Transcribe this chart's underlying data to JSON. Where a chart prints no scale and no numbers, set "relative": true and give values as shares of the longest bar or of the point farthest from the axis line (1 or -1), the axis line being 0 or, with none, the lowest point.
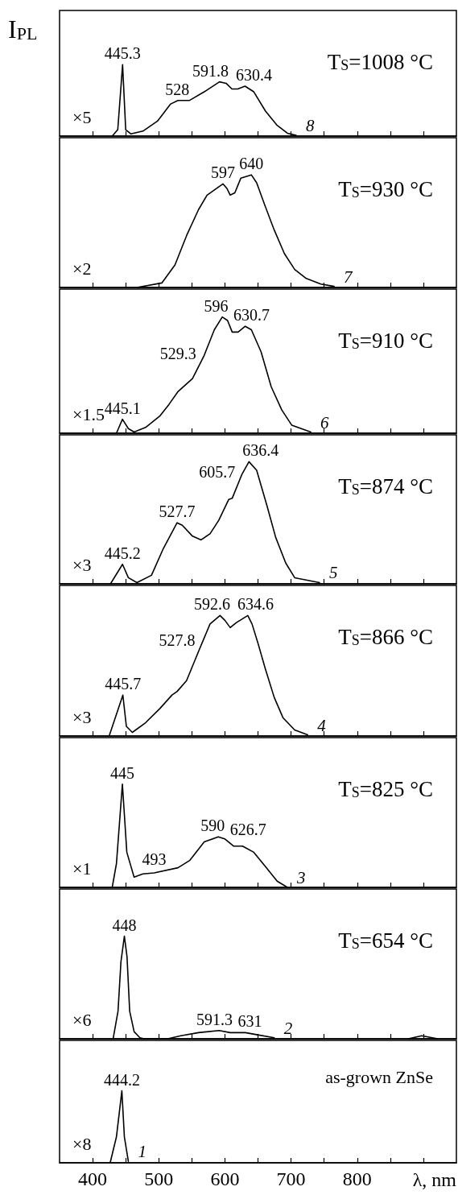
{
  "chart_data": [
    {
      "type": "line",
      "title": "T$_{S}$=1008 °C",
      "ylabel": "I$_{PL}$",
      "relative": true,
      "xlim": [
        350,
        950
      ],
      "tick_labels": false,
      "xticks": [
        400,
        {
          "value": 450,
          "label": null
        },
        500,
        {
          "value": 550,
          "label": null
        },
        600,
        {
          "value": 650,
          "label": null
        },
        700,
        {
          "value": 750,
          "label": null
        },
        800,
        {
          "value": 850,
          "label": null
        },
        {
          "value": 900,
          "label": null
        }
      ],
      "series": [
        {
          "name": "8",
          "color": "#000000",
          "x": [
            429.6,
            438,
            445.3,
            450,
            458,
            476,
            498,
            518,
            529,
            546.6,
            568.7,
            591.8,
            601.8,
            610.6,
            619.4,
            630.4,
            643.7,
            661.4,
            679,
            694.5,
            707.7
          ],
          "values": [
            0,
            0.09,
            1,
            0.09,
            0.03,
            0.07,
            0.21,
            0.45,
            0.5,
            0.5,
            0.62,
            0.76,
            0.74,
            0.66,
            0.66,
            0.7,
            0.62,
            0.35,
            0.15,
            0.04,
            0.01
          ]
        }
      ],
      "annotations": [
        "×5",
        {
          "text": "445.3",
          "x": 445.3,
          "y": 1
        },
        {
          "text": "528",
          "x": 528,
          "y": 0.5
        },
        {
          "text": "591.8",
          "x": 591.8,
          "y": 0.76
        },
        {
          "text": "630.4",
          "x": 630.4,
          "y": 0.7
        }
      ]
    },
    {
      "type": "line",
      "title": "T$_{S}$=930 °C",
      "relative": true,
      "xlim": [
        350,
        950
      ],
      "tick_labels": false,
      "xticks": [
        400,
        {
          "value": 450,
          "label": null
        },
        500,
        {
          "value": 550,
          "label": null
        },
        600,
        {
          "value": 650,
          "label": null
        },
        700,
        {
          "value": 750,
          "label": null
        },
        800,
        {
          "value": 850,
          "label": null
        },
        {
          "value": 900,
          "label": null
        }
      ],
      "series": [
        {
          "name": "7",
          "color": "#000000",
          "x": [
            467,
            504.6,
            524.5,
            542,
            560,
            573,
            597,
            603,
            608,
            615,
            624,
            640,
            648,
            661,
            674.6,
            690,
            705.5,
            723,
            745,
            765
          ],
          "values": [
            0,
            0.04,
            0.2,
            0.46,
            0.69,
            0.82,
            0.92,
            0.88,
            0.82,
            0.84,
            0.97,
            1,
            0.93,
            0.72,
            0.51,
            0.3,
            0.16,
            0.08,
            0.03,
            0.01
          ]
        }
      ],
      "annotations": [
        "×2",
        {
          "text": "597",
          "x": 597,
          "y": 0.92
        },
        {
          "text": "640",
          "x": 640,
          "y": 1
        }
      ]
    },
    {
      "type": "line",
      "title": "T$_{S}$=910 °C",
      "relative": true,
      "xlim": [
        350,
        950
      ],
      "tick_labels": false,
      "xticks": [
        400,
        {
          "value": 450,
          "label": null
        },
        500,
        {
          "value": 550,
          "label": null
        },
        600,
        {
          "value": 650,
          "label": null
        },
        700,
        {
          "value": 750,
          "label": null
        },
        800,
        {
          "value": 850,
          "label": null
        },
        {
          "value": 900,
          "label": null
        }
      ],
      "series": [
        {
          "name": "6",
          "color": "#000000",
          "x": [
            436,
            445.1,
            454,
            462.7,
            480,
            502,
            515.7,
            529.3,
            551,
            568.7,
            584,
            596,
            604,
            611,
            620,
            630.7,
            640,
            654.7,
            670,
            686,
            701,
            729.8
          ],
          "values": [
            0,
            0.12,
            0.04,
            0.01,
            0.05,
            0.15,
            0.25,
            0.36,
            0.47,
            0.67,
            0.89,
            1,
            0.97,
            0.87,
            0.87,
            0.92,
            0.89,
            0.7,
            0.4,
            0.2,
            0.07,
            0.01
          ]
        }
      ],
      "annotations": [
        "×1.5",
        {
          "text": "445.1",
          "x": 445.1,
          "y": 0.12
        },
        {
          "text": "529.3",
          "x": 529.3,
          "y": 0.36
        },
        {
          "text": "596",
          "x": 596,
          "y": 1
        },
        {
          "text": "630.7",
          "x": 630.7,
          "y": 0.92
        }
      ]
    },
    {
      "type": "line",
      "title": "T$_{S}$=874 °C",
      "relative": true,
      "xlim": [
        350,
        950
      ],
      "tick_labels": false,
      "xticks": [
        400,
        {
          "value": 450,
          "label": null
        },
        500,
        {
          "value": 550,
          "label": null
        },
        600,
        {
          "value": 650,
          "label": null
        },
        700,
        {
          "value": 750,
          "label": null
        },
        800,
        {
          "value": 850,
          "label": null
        },
        {
          "value": 900,
          "label": null
        }
      ],
      "series": [
        {
          "name": "5",
          "color": "#000000",
          "x": [
            427,
            445.2,
            454,
            467,
            489,
            507,
            527.7,
            535.5,
            551,
            564,
            577.5,
            590.7,
            605.7,
            611,
            626,
            636.4,
            648,
            663.6,
            676.8,
            692,
            705.5,
            743
          ],
          "values": [
            0,
            0.16,
            0.05,
            0.01,
            0.07,
            0.29,
            0.5,
            0.48,
            0.39,
            0.36,
            0.41,
            0.52,
            0.69,
            0.7,
            0.9,
            1,
            0.93,
            0.64,
            0.38,
            0.17,
            0.05,
            0.01
          ]
        }
      ],
      "annotations": [
        "×3",
        {
          "text": "445.2",
          "x": 445.2,
          "y": 0.16
        },
        {
          "text": "527.7",
          "x": 527.7,
          "y": 0.5
        },
        {
          "text": "605.7",
          "x": 605.7,
          "y": 0.69
        },
        {
          "text": "636.4",
          "x": 636.4,
          "y": 1
        }
      ]
    },
    {
      "type": "line",
      "title": "T$_{S}$=866 °C",
      "relative": true,
      "xlim": [
        350,
        950
      ],
      "tick_labels": false,
      "xticks": [
        400,
        {
          "value": 450,
          "label": null
        },
        500,
        {
          "value": 550,
          "label": null
        },
        600,
        {
          "value": 650,
          "label": null
        },
        700,
        {
          "value": 750,
          "label": null
        },
        800,
        {
          "value": 850,
          "label": null
        },
        {
          "value": 900,
          "label": null
        }
      ],
      "series": [
        {
          "name": "4",
          "color": "#000000",
          "x": [
            425,
            445.7,
            451,
            460,
            480,
            502,
            520,
            527.8,
            542,
            560,
            577.5,
            592.6,
            600,
            608,
            617,
            634.6,
            641,
            650,
            661,
            674.6,
            688,
            705.5,
            725
          ],
          "values": [
            0,
            0.34,
            0.08,
            0.03,
            0.11,
            0.23,
            0.34,
            0.37,
            0.46,
            0.7,
            0.93,
            1,
            0.96,
            0.9,
            0.94,
            1,
            0.93,
            0.77,
            0.56,
            0.32,
            0.15,
            0.05,
            0.01
          ]
        }
      ],
      "annotations": [
        "×3",
        {
          "text": "445.7",
          "x": 445.7,
          "y": 0.34
        },
        {
          "text": "527.8",
          "x": 527.8,
          "y": 0.37
        },
        {
          "text": "592.6",
          "x": 592.6,
          "y": 1
        },
        {
          "text": "634.6",
          "x": 634.6,
          "y": 1
        }
      ]
    },
    {
      "type": "line",
      "title": "T$_{S}$=825 °C",
      "relative": true,
      "xlim": [
        350,
        950
      ],
      "tick_labels": false,
      "xticks": [
        400,
        {
          "value": 450,
          "label": null
        },
        500,
        {
          "value": 550,
          "label": null
        },
        600,
        {
          "value": 650,
          "label": null
        },
        700,
        {
          "value": 750,
          "label": null
        },
        800,
        {
          "value": 850,
          "label": null
        },
        {
          "value": 900,
          "label": null
        }
      ],
      "series": [
        {
          "name": "3",
          "color": "#000000",
          "x": [
            429.6,
            436,
            445,
            451.7,
            462.7,
            476,
            493,
            529,
            546.6,
            568.7,
            590,
            599.6,
            613,
            626.7,
            643.7,
            661.4,
            679,
            694.5
          ],
          "values": [
            0,
            0.23,
            1,
            0.34,
            0.1,
            0.13,
            0.14,
            0.19,
            0.26,
            0.44,
            0.49,
            0.47,
            0.4,
            0.4,
            0.34,
            0.2,
            0.06,
            0
          ]
        }
      ],
      "annotations": [
        "×1",
        {
          "text": "445",
          "x": 445,
          "y": 1
        },
        {
          "text": "493",
          "x": 493,
          "y": 0.14
        },
        {
          "text": "590",
          "x": 590,
          "y": 0.49
        },
        {
          "text": "626.7",
          "x": 626.7,
          "y": 0.4
        }
      ]
    },
    {
      "type": "line",
      "title": "T$_{S}$=654 °C",
      "relative": true,
      "xlim": [
        350,
        950
      ],
      "tick_labels": false,
      "xticks": [
        400,
        {
          "value": 450,
          "label": null
        },
        500,
        {
          "value": 550,
          "label": null
        },
        600,
        {
          "value": 650,
          "label": null
        },
        700,
        {
          "value": 750,
          "label": null
        },
        800,
        {
          "value": 850,
          "label": null
        },
        {
          "value": 900,
          "label": null
        }
      ],
      "series": [
        {
          "name": "2",
          "color": "#000000",
          "x": [
            431,
            438.4,
            442.8,
            448,
            452,
            456,
            462.7,
            471.5,
            478,
            513.5,
            533.3,
            560,
            591.3,
            608,
            631,
            648,
            674.6
          ],
          "values": [
            0,
            0.27,
            0.75,
            1,
            0.8,
            0.27,
            0.07,
            0.01,
            0,
            0,
            0.03,
            0.06,
            0.08,
            0.06,
            0.06,
            0.04,
            0.01
          ]
        },
        {
          "color": "#000000",
          "x": [
            877.7,
            897.6,
            921.8
          ],
          "values": [
            0,
            0.03,
            0
          ]
        }
      ],
      "annotations": [
        "×6",
        {
          "text": "448",
          "x": 448,
          "y": 1
        },
        {
          "text": "591.3",
          "x": 591.3,
          "y": 0.08
        },
        {
          "text": "631",
          "x": 631,
          "y": 0.06
        }
      ]
    },
    {
      "type": "line",
      "title": "as-grown ZnSe",
      "xlabel": "λ, nm",
      "relative": true,
      "xlim": [
        350,
        950
      ],
      "tick_labels": "x",
      "xticks": [
        400,
        {
          "value": 450,
          "label": null
        },
        500,
        {
          "value": 550,
          "label": null
        },
        600,
        {
          "value": 650,
          "label": null
        },
        700,
        {
          "value": 750,
          "label": null
        },
        800,
        {
          "value": 850,
          "label": null
        },
        {
          "value": 900,
          "label": null
        }
      ],
      "series": [
        {
          "name": "1",
          "color": "#000000",
          "x": [
            426.5,
            436,
            444.2,
            448,
            454
          ],
          "values": [
            0,
            0.36,
            1,
            0.36,
            0.02
          ]
        }
      ],
      "annotations": [
        "×8",
        {
          "text": "444.2",
          "x": 444.2,
          "y": 1
        }
      ]
    }
  ]
}
